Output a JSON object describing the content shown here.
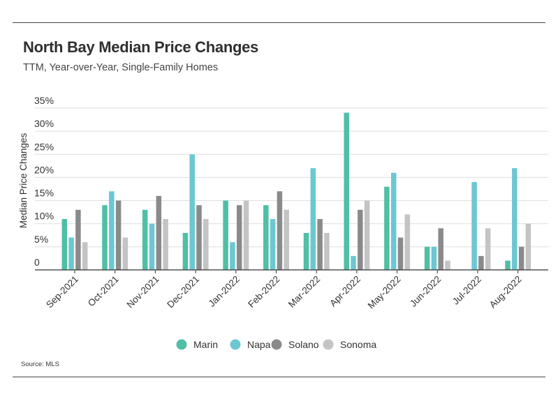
{
  "header": {
    "title": "North Bay Median Price Changes",
    "subtitle": "TTM, Year-over-Year, Single-Family Homes"
  },
  "footer": {
    "source": "Source:  MLS"
  },
  "colors": {
    "Marin": "#4fbfa5",
    "Napa": "#6cc7d3",
    "Solano": "#8a8a8a",
    "Sonoma": "#c4c4c4",
    "grid": "#dddddd",
    "axis": "#333333"
  },
  "chart_data": {
    "type": "bar",
    "title": "North Bay Median Price Changes",
    "subtitle": "TTM, Year-over-Year, Single-Family Homes",
    "xlabel": "",
    "ylabel": "Median Price Changes",
    "ylim": [
      0,
      35
    ],
    "yticks": [
      0,
      5,
      10,
      15,
      20,
      25,
      30,
      35
    ],
    "ytick_labels": [
      "0",
      "5%",
      "10%",
      "15%",
      "20%",
      "25%",
      "30%",
      "35%"
    ],
    "grid": true,
    "legend_position": "bottom",
    "categories": [
      "Sep-2021",
      "Oct-2021",
      "Nov-2021",
      "Dec-2021",
      "Jan-2022",
      "Feb-2022",
      "Mar-2022",
      "Apr-2022",
      "May-2022",
      "Jun-2022",
      "Jul-2022",
      "Aug-2022"
    ],
    "series": [
      {
        "name": "Marin",
        "values": [
          11,
          14,
          13,
          8,
          15,
          14,
          8,
          34,
          18,
          5,
          0,
          2
        ]
      },
      {
        "name": "Napa",
        "values": [
          7,
          17,
          10,
          25,
          6,
          11,
          22,
          3,
          21,
          5,
          19,
          22
        ]
      },
      {
        "name": "Solano",
        "values": [
          13,
          15,
          16,
          14,
          14,
          17,
          11,
          13,
          7,
          9,
          3,
          5
        ]
      },
      {
        "name": "Sonoma",
        "values": [
          6,
          7,
          11,
          11,
          15,
          13,
          8,
          15,
          12,
          2,
          9,
          10
        ]
      }
    ]
  }
}
